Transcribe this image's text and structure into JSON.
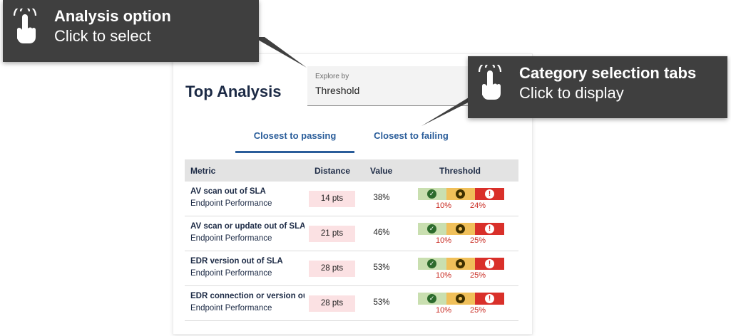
{
  "card": {
    "title": "Top Analysis",
    "explore": {
      "label": "Explore by",
      "value": "Threshold"
    },
    "tabs": [
      {
        "label": "Closest to passing",
        "active": true
      },
      {
        "label": "Closest to failing",
        "active": false
      }
    ]
  },
  "table": {
    "columns": [
      "Metric",
      "Distance",
      "Value",
      "Threshold"
    ],
    "rows": [
      {
        "metric": "AV scan out of SLA",
        "category": "Endpoint Performance",
        "distance": "14 pts",
        "value": "38%",
        "threshold_low": "10%",
        "threshold_high": "24%"
      },
      {
        "metric": "AV scan or update out of SLA",
        "category": "Endpoint Performance",
        "distance": "21 pts",
        "value": "46%",
        "threshold_low": "10%",
        "threshold_high": "25%"
      },
      {
        "metric": "EDR version out of SLA",
        "category": "Endpoint Performance",
        "distance": "28 pts",
        "value": "53%",
        "threshold_low": "10%",
        "threshold_high": "25%"
      },
      {
        "metric": "EDR connection or version out of SLA",
        "category": "Endpoint Performance",
        "distance": "28 pts",
        "value": "53%",
        "threshold_low": "10%",
        "threshold_high": "25%"
      }
    ]
  },
  "threshold_colors": {
    "pass": "#c9dfb0",
    "warn": "#f0c05a",
    "fail": "#d9302a"
  },
  "tooltips": [
    {
      "title": "Analysis option",
      "subtitle": "Click to select",
      "icon": "pointer-hand-icon"
    },
    {
      "title": "Category selection tabs",
      "subtitle": "Click to display",
      "icon": "pointer-hand-icon"
    }
  ]
}
